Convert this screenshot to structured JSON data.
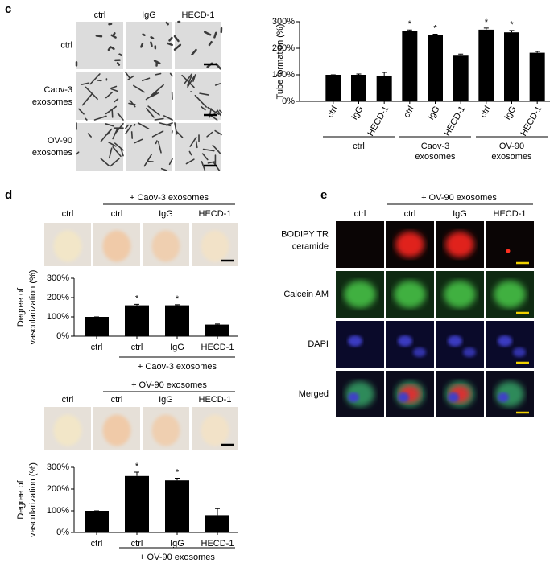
{
  "panel_c": {
    "letter": "c",
    "columns": [
      "ctrl",
      "IgG",
      "HECD-1"
    ],
    "rows": [
      [
        "ctrl"
      ],
      [
        "Caov-3",
        "exosomes"
      ],
      [
        "OV-90",
        "exosomes"
      ]
    ]
  },
  "panel_d": {
    "letter": "d",
    "groups": [
      {
        "header": "+ Caov-3 exosomes",
        "columns": [
          "ctrl",
          "ctrl",
          "IgG",
          "HECD-1"
        ]
      },
      {
        "header": "+ OV-90 exosomes",
        "columns": [
          "ctrl",
          "ctrl",
          "IgG",
          "HECD-1"
        ]
      }
    ]
  },
  "panel_e": {
    "letter": "e",
    "header": "+ OV-90 exosomes",
    "columns": [
      "ctrl",
      "ctrl",
      "IgG",
      "HECD-1"
    ],
    "rows": [
      [
        "BODIPY TR",
        "ceramide"
      ],
      [
        "Calcein AM"
      ],
      [
        "DAPI"
      ],
      [
        "Merged"
      ]
    ]
  },
  "chart_data": [
    {
      "type": "bar",
      "ylabel": "Tube formation (%)",
      "categories": [
        "ctrl",
        "IgG",
        "HECD-1",
        "ctrl",
        "IgG",
        "HECD-1",
        "ctrl",
        "IgG",
        "HECD-1"
      ],
      "values": [
        100,
        100,
        97,
        265,
        250,
        172,
        270,
        260,
        183
      ],
      "errors": [
        0,
        3,
        12,
        4,
        3,
        6,
        6,
        7,
        5
      ],
      "stars": [
        null,
        null,
        null,
        "*",
        "*",
        null,
        "*",
        "*",
        null
      ],
      "group_labels": [
        [
          "ctrl"
        ],
        null,
        null,
        [
          "Caov-3",
          "exosomes"
        ],
        null,
        null,
        [
          "OV-90",
          "exosomes"
        ],
        null,
        null
      ],
      "color": "#000000",
      "ylim": [
        0,
        300
      ],
      "yticks": [
        {
          "value": 0,
          "label": "0%"
        },
        {
          "value": 100,
          "label": "100%"
        },
        {
          "value": 200,
          "label": "200%"
        },
        {
          "value": 300,
          "label": "300%"
        }
      ]
    },
    {
      "type": "bar",
      "ylabel": [
        "Degree of",
        "vascularization (%)"
      ],
      "categories": [
        "ctrl",
        "ctrl",
        "IgG",
        "HECD-1"
      ],
      "values": [
        100,
        160,
        160,
        60
      ],
      "errors": [
        0,
        5,
        3,
        3
      ],
      "stars": [
        null,
        "*",
        "*",
        null
      ],
      "group_labels": [
        null,
        [
          "+ Caov-3 exosomes"
        ],
        null,
        null
      ],
      "color": "#000000",
      "ylim": [
        0,
        300
      ],
      "yticks": [
        {
          "value": 0,
          "label": "0%"
        },
        {
          "value": 100,
          "label": "100%"
        },
        {
          "value": 200,
          "label": "200%"
        },
        {
          "value": 300,
          "label": "300%"
        }
      ]
    },
    {
      "type": "bar",
      "ylabel": [
        "Degree of",
        "vascularization (%)"
      ],
      "categories": [
        "ctrl",
        "ctrl",
        "IgG",
        "HECD-1"
      ],
      "values": [
        100,
        260,
        240,
        80
      ],
      "errors": [
        0,
        18,
        10,
        30
      ],
      "stars": [
        null,
        "*",
        "*",
        null
      ],
      "group_labels": [
        null,
        [
          "+ OV-90 exosomes"
        ],
        null,
        null
      ],
      "color": "#000000",
      "ylim": [
        0,
        300
      ],
      "yticks": [
        {
          "value": 0,
          "label": "0%"
        },
        {
          "value": 100,
          "label": "100%"
        },
        {
          "value": 200,
          "label": "200%"
        },
        {
          "value": 300,
          "label": "300%"
        }
      ]
    }
  ]
}
